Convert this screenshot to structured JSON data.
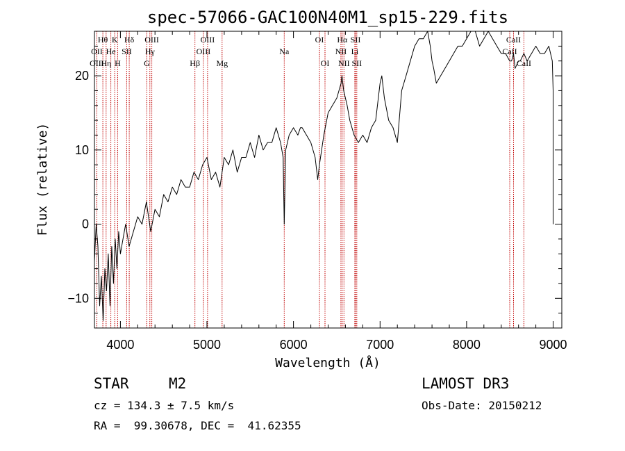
{
  "chart_data": {
    "type": "line",
    "title": "spec-57066-GAC100N40M1_sp15-229.fits",
    "xlabel": "Wavelength (Å)",
    "ylabel": "Flux (relative)",
    "xlim": [
      3700,
      9100
    ],
    "ylim": [
      -14,
      26
    ],
    "xticks": [
      4000,
      5000,
      6000,
      7000,
      8000,
      9000
    ],
    "yticks": [
      -10,
      0,
      10,
      20
    ],
    "series": [
      {
        "name": "flux",
        "x": [
          3700,
          3720,
          3740,
          3760,
          3780,
          3800,
          3820,
          3840,
          3860,
          3880,
          3900,
          3920,
          3940,
          3960,
          3980,
          4000,
          4030,
          4060,
          4100,
          4150,
          4200,
          4250,
          4300,
          4350,
          4400,
          4450,
          4500,
          4550,
          4600,
          4650,
          4700,
          4750,
          4800,
          4850,
          4900,
          4950,
          5000,
          5050,
          5100,
          5150,
          5200,
          5250,
          5300,
          5350,
          5400,
          5450,
          5500,
          5550,
          5600,
          5650,
          5700,
          5750,
          5800,
          5850,
          5880,
          5893,
          5910,
          5950,
          6000,
          6050,
          6080,
          6100,
          6150,
          6200,
          6250,
          6280,
          6300,
          6350,
          6400,
          6450,
          6500,
          6550,
          6560,
          6580,
          6600,
          6620,
          6650,
          6700,
          6750,
          6800,
          6850,
          6900,
          6950,
          7000,
          7020,
          7050,
          7100,
          7150,
          7200,
          7250,
          7300,
          7350,
          7400,
          7450,
          7500,
          7550,
          7580,
          7600,
          7620,
          7650,
          7700,
          7750,
          7800,
          7850,
          7900,
          7950,
          8000,
          8050,
          8100,
          8150,
          8200,
          8250,
          8300,
          8350,
          8400,
          8450,
          8498,
          8520,
          8542,
          8560,
          8600,
          8620,
          8662,
          8700,
          8750,
          8800,
          8850,
          8900,
          8950,
          8990,
          9000,
          9000
        ],
        "y": [
          -5,
          0,
          -3,
          -11,
          -7,
          -13,
          -6,
          -9,
          -4,
          -11,
          -3,
          -8,
          -2,
          -6,
          -1,
          -4,
          -2,
          0,
          -3,
          -1,
          1,
          0,
          3,
          -1,
          2,
          1,
          4,
          3,
          5,
          4,
          6,
          5,
          5,
          7,
          6,
          8,
          9,
          6,
          7,
          5,
          9,
          8,
          10,
          7,
          9,
          9,
          11,
          9,
          12,
          10,
          11,
          11,
          13,
          11,
          9,
          0,
          10,
          12,
          13,
          12,
          13,
          13,
          12,
          11,
          9,
          6,
          8,
          12,
          15,
          16,
          17,
          19,
          20,
          18,
          17,
          16,
          14,
          12,
          11,
          12,
          11,
          13,
          14,
          19,
          20,
          17,
          14,
          13,
          11,
          18,
          20,
          22,
          24,
          25,
          25,
          26,
          24,
          22,
          21,
          19,
          20,
          21,
          22,
          23,
          24,
          24,
          25,
          26,
          26,
          24,
          25,
          26,
          25,
          24,
          23,
          23,
          22,
          22,
          23,
          21,
          22,
          22,
          23,
          22,
          23,
          24,
          23,
          23,
          24,
          22,
          18,
          0
        ]
      }
    ],
    "emission_lines": [
      {
        "label": "Hθ",
        "wl": 3797,
        "row": 1
      },
      {
        "label": "K",
        "wl": 3934,
        "row": 1
      },
      {
        "label": "Hδ",
        "wl": 4102,
        "row": 1
      },
      {
        "label": "OIII",
        "wl": 4363,
        "row": 1
      },
      {
        "label": "OIII",
        "wl": 5007,
        "row": 1
      },
      {
        "label": "OI",
        "wl": 6300,
        "row": 1
      },
      {
        "label": "Hα",
        "wl": 6563,
        "row": 1
      },
      {
        "label": "SII",
        "wl": 6717,
        "row": 1
      },
      {
        "label": "CaII",
        "wl": 8542,
        "row": 1
      },
      {
        "label": "OII",
        "wl": 3727,
        "row": 2
      },
      {
        "label": "He",
        "wl": 3889,
        "row": 2
      },
      {
        "label": "SII",
        "wl": 4072,
        "row": 2
      },
      {
        "label": "Hγ",
        "wl": 4340,
        "row": 2
      },
      {
        "label": "OIII",
        "wl": 4959,
        "row": 2
      },
      {
        "label": "Na",
        "wl": 5893,
        "row": 2
      },
      {
        "label": "NII",
        "wl": 6548,
        "row": 2
      },
      {
        "label": "Li",
        "wl": 6708,
        "row": 2
      },
      {
        "label": "CaII",
        "wl": 8498,
        "row": 2
      },
      {
        "label": "OIII",
        "wl": 3727,
        "row": 3
      },
      {
        "label": "Hη",
        "wl": 3835,
        "row": 3
      },
      {
        "label": "H",
        "wl": 3968,
        "row": 3
      },
      {
        "label": "G",
        "wl": 4305,
        "row": 3
      },
      {
        "label": "Hβ",
        "wl": 4861,
        "row": 3
      },
      {
        "label": "Mg",
        "wl": 5175,
        "row": 3
      },
      {
        "label": "OI",
        "wl": 6364,
        "row": 3
      },
      {
        "label": "NII",
        "wl": 6583,
        "row": 3
      },
      {
        "label": "SII",
        "wl": 6731,
        "row": 3
      },
      {
        "label": "CaII",
        "wl": 8662,
        "row": 3
      }
    ],
    "marker_wavelengths": [
      3727,
      3797,
      3835,
      3889,
      3934,
      3968,
      4072,
      4102,
      4305,
      4340,
      4363,
      4861,
      4959,
      5007,
      5175,
      5893,
      6300,
      6364,
      6548,
      6563,
      6583,
      6708,
      6717,
      6731,
      8498,
      8542,
      8662
    ],
    "colors": {
      "line": "#000000",
      "marker": "#c00000",
      "axes": "#000000"
    }
  },
  "info": {
    "object_class": "STAR",
    "subclass": "M2",
    "survey": "LAMOST DR3",
    "cz": "cz = 134.3 ± 7.5 km/s",
    "obs_date": "Obs-Date: 20150212",
    "coords": "RA =  99.30678, DEC =  41.62355"
  }
}
